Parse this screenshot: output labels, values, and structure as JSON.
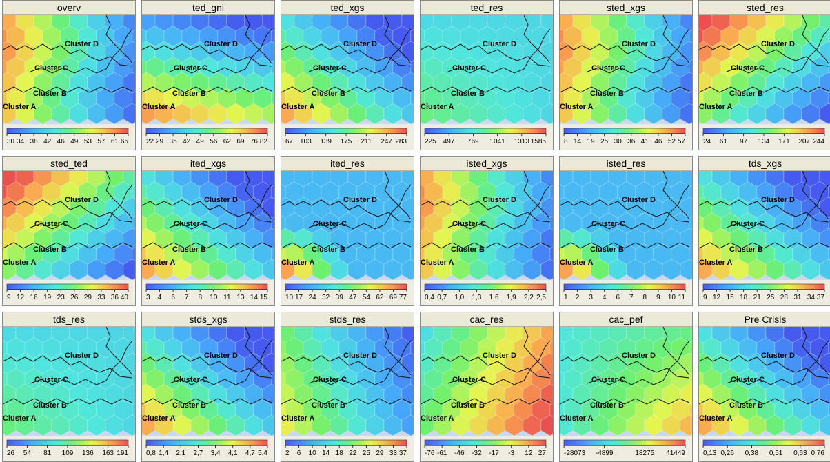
{
  "cluster_labels": [
    "Cluster A",
    "Cluster B",
    "Cluster C",
    "Cluster D"
  ],
  "chart_data": [
    {
      "type": "heatmap",
      "title": "overv",
      "colorbar_ticks": [
        "30",
        "34",
        "38",
        "42",
        "46",
        "49",
        "53",
        "57",
        "61",
        "65"
      ],
      "range": [
        30,
        65
      ],
      "hot": "left"
    },
    {
      "type": "heatmap",
      "title": "ted_gni",
      "colorbar_ticks": [
        "22",
        "29",
        "35",
        "42",
        "49",
        "56",
        "62",
        "69",
        "76",
        "82"
      ],
      "range": [
        22,
        82
      ],
      "hot": "bottom"
    },
    {
      "type": "heatmap",
      "title": "ted_xgs",
      "colorbar_ticks": [
        "67",
        "103",
        "139",
        "175",
        "211",
        "247",
        "283"
      ],
      "range": [
        67,
        283
      ],
      "hot": "bottom-left"
    },
    {
      "type": "heatmap",
      "title": "ted_res",
      "colorbar_ticks": [
        "225",
        "497",
        "769",
        "1041",
        "1313",
        "1585"
      ],
      "range": [
        225,
        1585
      ],
      "hot": "none"
    },
    {
      "type": "heatmap",
      "title": "sted_xgs",
      "colorbar_ticks": [
        "8",
        "14",
        "19",
        "25",
        "30",
        "36",
        "41",
        "46",
        "52",
        "57"
      ],
      "range": [
        8,
        57
      ],
      "hot": "left"
    },
    {
      "type": "heatmap",
      "title": "sted_res",
      "colorbar_ticks": [
        "24",
        "61",
        "97",
        "134",
        "171",
        "207",
        "244"
      ],
      "range": [
        24,
        244
      ],
      "hot": "top-left"
    },
    {
      "type": "heatmap",
      "title": "sted_ted",
      "colorbar_ticks": [
        "9",
        "12",
        "16",
        "19",
        "23",
        "26",
        "29",
        "33",
        "36",
        "40"
      ],
      "range": [
        9,
        40
      ],
      "hot": "top-left"
    },
    {
      "type": "heatmap",
      "title": "ited_xgs",
      "colorbar_ticks": [
        "3",
        "4",
        "6",
        "7",
        "8",
        "10",
        "11",
        "13",
        "14",
        "15"
      ],
      "range": [
        3,
        15
      ],
      "hot": "bottom-left"
    },
    {
      "type": "heatmap",
      "title": "ited_res",
      "colorbar_ticks": [
        "10",
        "17",
        "24",
        "32",
        "39",
        "47",
        "54",
        "62",
        "69",
        "77"
      ],
      "range": [
        10,
        77
      ],
      "hot": "corner"
    },
    {
      "type": "heatmap",
      "title": "isted_xgs",
      "colorbar_ticks": [
        "0,4",
        "0,7",
        "1,0",
        "1,3",
        "1,6",
        "1,9",
        "2,2",
        "2,5"
      ],
      "range": [
        0.4,
        2.5
      ],
      "hot": "left"
    },
    {
      "type": "heatmap",
      "title": "isted_res",
      "colorbar_ticks": [
        "1",
        "2",
        "3",
        "4",
        "6",
        "7",
        "8",
        "9",
        "10",
        "11"
      ],
      "range": [
        1,
        11
      ],
      "hot": "corner"
    },
    {
      "type": "heatmap",
      "title": "tds_xgs",
      "colorbar_ticks": [
        "9",
        "12",
        "15",
        "18",
        "21",
        "25",
        "28",
        "31",
        "34",
        "37"
      ],
      "range": [
        9,
        37
      ],
      "hot": "bottom-left"
    },
    {
      "type": "heatmap",
      "title": "tds_res",
      "colorbar_ticks": [
        "26",
        "54",
        "81",
        "109",
        "136",
        "163",
        "191"
      ],
      "range": [
        26,
        191
      ],
      "hot": "none"
    },
    {
      "type": "heatmap",
      "title": "stds_xgs",
      "colorbar_ticks": [
        "0,8",
        "1,4",
        "2,1",
        "2,7",
        "3,4",
        "4,1",
        "4,7",
        "5,4"
      ],
      "range": [
        0.8,
        5.4
      ],
      "hot": "bottom-left"
    },
    {
      "type": "heatmap",
      "title": "stds_res",
      "colorbar_ticks": [
        "2",
        "6",
        "10",
        "14",
        "18",
        "22",
        "25",
        "29",
        "33",
        "37"
      ],
      "range": [
        2,
        37
      ],
      "hot": "left-soft"
    },
    {
      "type": "heatmap",
      "title": "cac_res",
      "colorbar_ticks": [
        "-76",
        "-61",
        "-46",
        "-32",
        "-17",
        "-3",
        "12",
        "27"
      ],
      "range": [
        -76,
        27
      ],
      "hot": "right"
    },
    {
      "type": "heatmap",
      "title": "cac_pef",
      "colorbar_ticks": [
        "-28073",
        "-4899",
        "18275",
        "41449"
      ],
      "range": [
        -28073,
        41449
      ],
      "hot": "right-soft"
    },
    {
      "type": "heatmap",
      "title": "Pre Crisis",
      "colorbar_ticks": [
        "0,13",
        "0,26",
        "0,38",
        "0,51",
        "0,63",
        "0,76"
      ],
      "range": [
        0.13,
        0.76
      ],
      "hot": "bottom-left"
    }
  ]
}
